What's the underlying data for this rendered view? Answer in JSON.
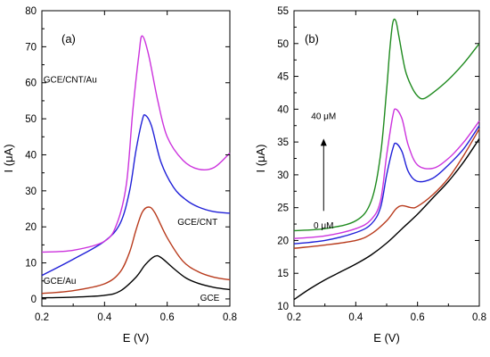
{
  "chart_data": [
    {
      "type": "line",
      "panel_label": "(a)",
      "xlabel": "E (V)",
      "ylabel": "I (μA)",
      "xlim": [
        0.2,
        0.8
      ],
      "ylim": [
        -2,
        80
      ],
      "xticks": [
        "0.2",
        "0.4",
        "0.6",
        "0.8"
      ],
      "yticks": [
        "0",
        "10",
        "20",
        "30",
        "40",
        "50",
        "60",
        "70",
        "80"
      ],
      "grid": false,
      "series": [
        {
          "name": "GCE",
          "color": "#000000",
          "x": [
            0.2,
            0.3,
            0.4,
            0.45,
            0.5,
            0.53,
            0.56,
            0.58,
            0.62,
            0.66,
            0.7,
            0.75,
            0.8
          ],
          "y": [
            0.3,
            0.5,
            1.0,
            2.2,
            6.0,
            9.5,
            11.8,
            11.5,
            8.5,
            5.8,
            4.3,
            3.2,
            2.6
          ]
        },
        {
          "name": "GCE/Au",
          "color": "#b83a1c",
          "x": [
            0.2,
            0.3,
            0.4,
            0.45,
            0.48,
            0.5,
            0.52,
            0.54,
            0.56,
            0.6,
            0.65,
            0.7,
            0.75,
            0.8
          ],
          "y": [
            1.5,
            2.3,
            4.2,
            7.5,
            13.0,
            19.0,
            24.0,
            25.5,
            24.0,
            17.0,
            10.5,
            7.5,
            6.0,
            5.3
          ]
        },
        {
          "name": "GCE/CNT",
          "color": "#2020d8",
          "x": [
            0.2,
            0.3,
            0.4,
            0.45,
            0.48,
            0.5,
            0.52,
            0.53,
            0.55,
            0.58,
            0.62,
            0.66,
            0.7,
            0.75,
            0.8
          ],
          "y": [
            6.5,
            11.0,
            16.0,
            21.0,
            30.0,
            41.0,
            49.5,
            51.0,
            48.0,
            38.0,
            31.0,
            27.5,
            25.5,
            24.2,
            23.8
          ]
        },
        {
          "name": "GCE/CNT/Au",
          "color": "#cc33dd",
          "x": [
            0.2,
            0.3,
            0.4,
            0.44,
            0.47,
            0.49,
            0.51,
            0.52,
            0.54,
            0.57,
            0.6,
            0.65,
            0.7,
            0.75,
            0.8
          ],
          "y": [
            13.0,
            13.5,
            16.0,
            21.0,
            32.0,
            52.0,
            68.0,
            73.0,
            68.0,
            55.0,
            45.0,
            38.5,
            36.0,
            36.5,
            40.5
          ]
        }
      ]
    },
    {
      "type": "line",
      "panel_label": "(b)",
      "xlabel": "E (V)",
      "ylabel": "I (μA)",
      "xlim": [
        0.2,
        0.8
      ],
      "ylim": [
        10,
        55
      ],
      "xticks": [
        "0.2",
        "0.4",
        "0.6",
        "0.8"
      ],
      "yticks": [
        "10",
        "15",
        "20",
        "25",
        "30",
        "35",
        "40",
        "45",
        "50",
        "55"
      ],
      "grid": false,
      "annotation_top": "40 μM",
      "annotation_bottom": "0 μM",
      "series": [
        {
          "concentration": "0 μM",
          "color": "#000000",
          "x": [
            0.2,
            0.25,
            0.3,
            0.35,
            0.4,
            0.45,
            0.5,
            0.55,
            0.6,
            0.65,
            0.7,
            0.75,
            0.8
          ],
          "y": [
            11.0,
            12.6,
            14.0,
            15.2,
            16.4,
            17.8,
            19.6,
            21.8,
            24.0,
            26.5,
            29.0,
            32.0,
            35.5
          ]
        },
        {
          "color": "#b83a1c",
          "x": [
            0.2,
            0.3,
            0.4,
            0.45,
            0.5,
            0.53,
            0.55,
            0.58,
            0.6,
            0.65,
            0.7,
            0.75,
            0.8
          ],
          "y": [
            18.8,
            19.3,
            20.0,
            21.0,
            23.0,
            24.8,
            25.3,
            25.0,
            25.2,
            27.0,
            29.5,
            33.0,
            37.0
          ]
        },
        {
          "color": "#2020d8",
          "x": [
            0.2,
            0.3,
            0.4,
            0.45,
            0.48,
            0.5,
            0.52,
            0.53,
            0.55,
            0.57,
            0.6,
            0.65,
            0.7,
            0.75,
            0.8
          ],
          "y": [
            19.5,
            20.0,
            21.2,
            22.5,
            25.0,
            30.0,
            34.0,
            34.8,
            33.5,
            30.5,
            29.0,
            29.5,
            31.5,
            34.0,
            37.5
          ]
        },
        {
          "color": "#cc33dd",
          "x": [
            0.2,
            0.3,
            0.4,
            0.45,
            0.48,
            0.5,
            0.52,
            0.53,
            0.55,
            0.57,
            0.6,
            0.65,
            0.7,
            0.75,
            0.8
          ],
          "y": [
            20.3,
            20.7,
            21.8,
            23.2,
            26.0,
            33.0,
            39.0,
            40.0,
            38.5,
            34.5,
            31.5,
            31.0,
            32.5,
            35.0,
            38.2
          ]
        },
        {
          "concentration": "40 μM",
          "color": "#1e8a1e",
          "x": [
            0.2,
            0.3,
            0.4,
            0.45,
            0.48,
            0.5,
            0.51,
            0.52,
            0.53,
            0.54,
            0.56,
            0.58,
            0.6,
            0.62,
            0.65,
            0.7,
            0.75,
            0.8
          ],
          "y": [
            21.5,
            21.8,
            23.0,
            26.0,
            33.0,
            43.0,
            49.0,
            53.2,
            53.4,
            51.0,
            46.0,
            43.5,
            42.0,
            41.6,
            42.5,
            44.5,
            47.0,
            50.0
          ]
        }
      ]
    }
  ]
}
